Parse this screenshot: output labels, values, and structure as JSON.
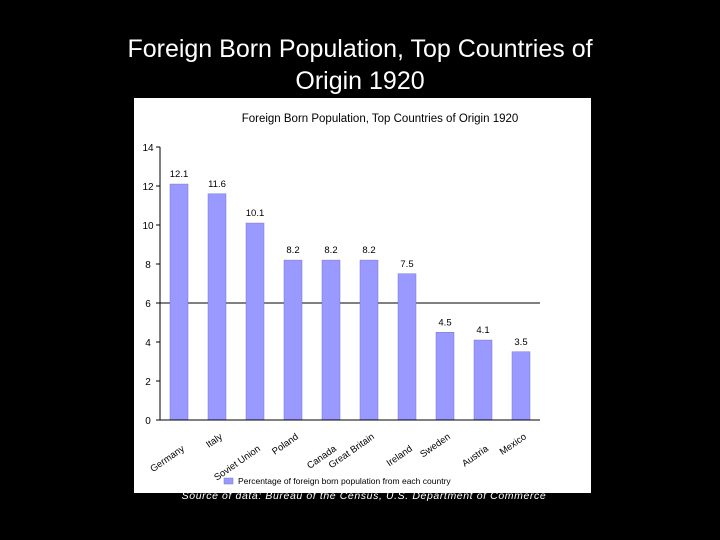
{
  "slide": {
    "title_line1": "Foreign Born Population, Top Countries of",
    "title_line2": "Origin 1920",
    "source": "Source of data:  Bureau of the Census, U.S. Department of Commerce"
  },
  "colors": {
    "background": "#000000",
    "bar": "#9999ff",
    "bar_border": "#7777cc"
  },
  "chart_data": {
    "type": "bar",
    "title": "Foreign Born Population, Top Countries of Origin 1920",
    "categories": [
      "Germany",
      "Italy",
      "Soviet Union",
      "Poland",
      "Canada",
      "Great Britain",
      "Ireland",
      "Sweden",
      "Austria",
      "Mexico"
    ],
    "series": [
      {
        "name": "Percentage of foreign born population from each country",
        "values": [
          12.1,
          11.6,
          10.1,
          8.2,
          8.2,
          8.2,
          7.5,
          4.5,
          4.1,
          3.5
        ]
      }
    ],
    "data_labels": [
      "12.1",
      "11.6",
      "10.1",
      "8.2",
      "8.2",
      "8.2",
      "7.5",
      "4.5",
      "4.1",
      "3.5"
    ],
    "ylim": [
      0,
      14
    ],
    "yticks": [
      0,
      2,
      4,
      6,
      8,
      10,
      12,
      14
    ],
    "ytick_labels": [
      "0",
      "2",
      "4",
      "6",
      "8",
      "10",
      "12",
      "14"
    ],
    "grid": false,
    "legend_position": "bottom"
  }
}
